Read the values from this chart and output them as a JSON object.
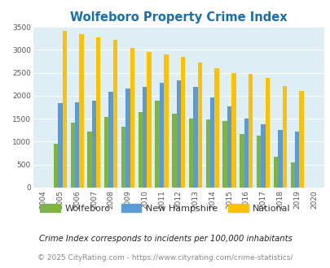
{
  "title": "Wolfeboro Property Crime Index",
  "years": [
    2004,
    2005,
    2006,
    2007,
    2008,
    2009,
    2010,
    2011,
    2012,
    2013,
    2014,
    2015,
    2016,
    2017,
    2018,
    2019,
    2020
  ],
  "wolfeboro": [
    0,
    950,
    1420,
    1220,
    1530,
    1320,
    1640,
    1900,
    1610,
    1500,
    1490,
    1450,
    1170,
    1130,
    680,
    550,
    0
  ],
  "new_hampshire": [
    0,
    1840,
    1860,
    1890,
    2090,
    2150,
    2190,
    2280,
    2330,
    2190,
    1970,
    1760,
    1510,
    1370,
    1250,
    1215,
    0
  ],
  "national": [
    0,
    3420,
    3340,
    3270,
    3210,
    3040,
    2950,
    2900,
    2850,
    2720,
    2600,
    2500,
    2470,
    2380,
    2210,
    2110,
    0
  ],
  "wolfeboro_color": "#7db53f",
  "nh_color": "#5b9bd5",
  "national_color": "#ffc000",
  "plot_bg_color": "#ddeef5",
  "title_color": "#1a6faf",
  "ylim": [
    0,
    3500
  ],
  "yticks": [
    0,
    500,
    1000,
    1500,
    2000,
    2500,
    3000,
    3500
  ],
  "footnote1": "Crime Index corresponds to incidents per 100,000 inhabitants",
  "footnote2": "© 2025 CityRating.com - https://www.cityrating.com/crime-statistics/",
  "footnote_color1": "#222222",
  "footnote_color2": "#888888"
}
